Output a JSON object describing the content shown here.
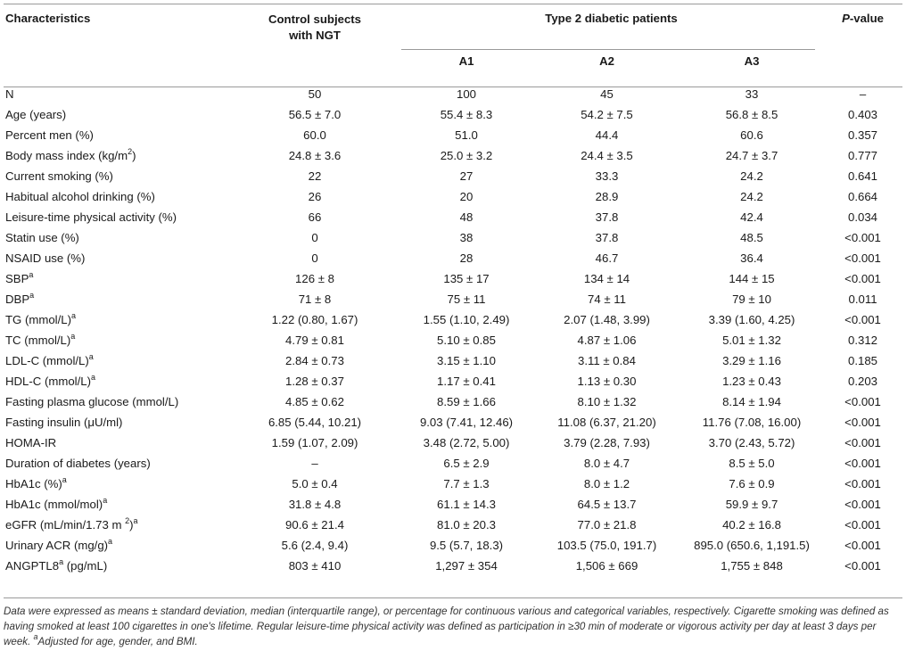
{
  "header": {
    "characteristics": "Characteristics",
    "control_line1": "Control subjects",
    "control_line2": "with NGT",
    "group": "Type 2 diabetic patients",
    "p_value_italic": "P",
    "p_value_rest": "-value",
    "sub": [
      "A1",
      "A2",
      "A3"
    ]
  },
  "rows": [
    {
      "label": "N",
      "sup": "",
      "cells": [
        "50",
        "100",
        "45",
        "33",
        "–"
      ]
    },
    {
      "label": "Age (years)",
      "sup": "",
      "cells": [
        "56.5 ± 7.0",
        "55.4 ± 8.3",
        "54.2 ± 7.5",
        "56.8 ± 8.5",
        "0.403"
      ]
    },
    {
      "label": "Percent men (%)",
      "sup": "",
      "cells": [
        "60.0",
        "51.0",
        "44.4",
        "60.6",
        "0.357"
      ]
    },
    {
      "label": "Body mass index (kg/m",
      "label_sup": "2",
      "label_after": ")",
      "sup": "",
      "cells": [
        "24.8 ± 3.6",
        "25.0 ± 3.2",
        "24.4 ± 3.5",
        "24.7 ± 3.7",
        "0.777"
      ]
    },
    {
      "label": "Current smoking (%)",
      "sup": "",
      "cells": [
        "22",
        "27",
        "33.3",
        "24.2",
        "0.641"
      ]
    },
    {
      "label": "Habitual alcohol drinking (%)",
      "sup": "",
      "cells": [
        "26",
        "20",
        "28.9",
        "24.2",
        "0.664"
      ]
    },
    {
      "label": "Leisure-time physical activity (%)",
      "sup": "",
      "cells": [
        "66",
        "48",
        "37.8",
        "42.4",
        "0.034"
      ]
    },
    {
      "label": "Statin use (%)",
      "sup": "",
      "cells": [
        "0",
        "38",
        "37.8",
        "48.5",
        "<0.001"
      ]
    },
    {
      "label": "NSAID use (%)",
      "sup": "",
      "cells": [
        "0",
        "28",
        "46.7",
        "36.4",
        "<0.001"
      ]
    },
    {
      "label": "SBP",
      "sup": "a",
      "cells": [
        "126 ± 8",
        "135 ± 17",
        "134 ± 14",
        "144 ± 15",
        "<0.001"
      ]
    },
    {
      "label": "DBP",
      "sup": "a",
      "cells": [
        "71 ± 8",
        "75 ± 11",
        "74 ± 11",
        "79 ± 10",
        "0.011"
      ]
    },
    {
      "label": "TG (mmol/L)",
      "sup": "a",
      "cells": [
        "1.22 (0.80, 1.67)",
        "1.55 (1.10, 2.49)",
        "2.07 (1.48, 3.99)",
        "3.39 (1.60, 4.25)",
        "<0.001"
      ]
    },
    {
      "label": "TC (mmol/L)",
      "sup": "a",
      "cells": [
        "4.79 ± 0.81",
        "5.10 ± 0.85",
        "4.87 ± 1.06",
        "5.01 ± 1.32",
        "0.312"
      ]
    },
    {
      "label": "LDL-C (mmol/L)",
      "sup": "a",
      "cells": [
        "2.84 ± 0.73",
        "3.15 ± 1.10",
        "3.11 ± 0.84",
        "3.29 ± 1.16",
        "0.185"
      ]
    },
    {
      "label": "HDL-C (mmol/L)",
      "sup": "a",
      "cells": [
        "1.28 ± 0.37",
        "1.17 ± 0.41",
        "1.13 ± 0.30",
        "1.23 ± 0.43",
        "0.203"
      ]
    },
    {
      "label": "Fasting plasma glucose (mmol/L)",
      "sup": "",
      "cells": [
        "4.85 ± 0.62",
        "8.59 ± 1.66",
        "8.10 ± 1.32",
        "8.14 ± 1.94",
        "<0.001"
      ]
    },
    {
      "label": "Fasting insulin (μU/ml)",
      "sup": "",
      "cells": [
        "6.85 (5.44, 10.21)",
        "9.03 (7.41, 12.46)",
        "11.08 (6.37, 21.20)",
        "11.76 (7.08, 16.00)",
        "<0.001"
      ]
    },
    {
      "label": "HOMA-IR",
      "sup": "",
      "cells": [
        "1.59 (1.07, 2.09)",
        "3.48 (2.72, 5.00)",
        "3.79 (2.28, 7.93)",
        "3.70 (2.43, 5.72)",
        "<0.001"
      ]
    },
    {
      "label": "Duration of diabetes (years)",
      "sup": "",
      "cells": [
        "–",
        "6.5 ± 2.9",
        "8.0 ± 4.7",
        "8.5 ± 5.0",
        "<0.001"
      ]
    },
    {
      "label": "HbA1c (%)",
      "sup": "a",
      "cells": [
        "5.0 ± 0.4",
        "7.7 ± 1.3",
        "8.0 ± 1.2",
        "7.6 ± 0.9",
        "<0.001"
      ]
    },
    {
      "label": "HbA1c (mmol/mol)",
      "sup": "a",
      "cells": [
        "31.8 ± 4.8",
        "61.1 ± 14.3",
        "64.5 ± 13.7",
        "59.9 ± 9.7",
        "<0.001"
      ]
    },
    {
      "label": "eGFR (mL/min/1.73 m ",
      "label_sup": "2",
      "label_after": ")",
      "sup": "a",
      "cells": [
        "90.6 ± 21.4",
        "81.0 ± 20.3",
        "77.0 ± 21.8",
        "40.2 ± 16.8",
        "<0.001"
      ]
    },
    {
      "label": "Urinary ACR (mg/g)",
      "sup": "a",
      "cells": [
        "5.6 (2.4, 9.4)",
        "9.5 (5.7, 18.3)",
        "103.5 (75.0, 191.7)",
        "895.0 (650.6, 1,191.5)",
        "<0.001"
      ]
    },
    {
      "label": "ANGPTL8",
      "sup": "a",
      "label_tail": " (pg/mL)",
      "cells": [
        "803 ± 410",
        "1,297 ± 354",
        "1,506 ± 669",
        "1,755 ± 848",
        "<0.001"
      ]
    }
  ],
  "footnote": {
    "text": "Data were expressed as means ± standard deviation, median (interquartile range), or percentage for continuous various and categorical variables, respectively. Cigarette smoking was defined as having smoked at least 100 cigarettes in one's lifetime. Regular leisure-time physical activity was defined as participation in ≥30 min of moderate or vigorous activity per day at least 3 days per week. ",
    "sup": "a",
    "tail": "Adjusted for age, gender, and BMI."
  }
}
